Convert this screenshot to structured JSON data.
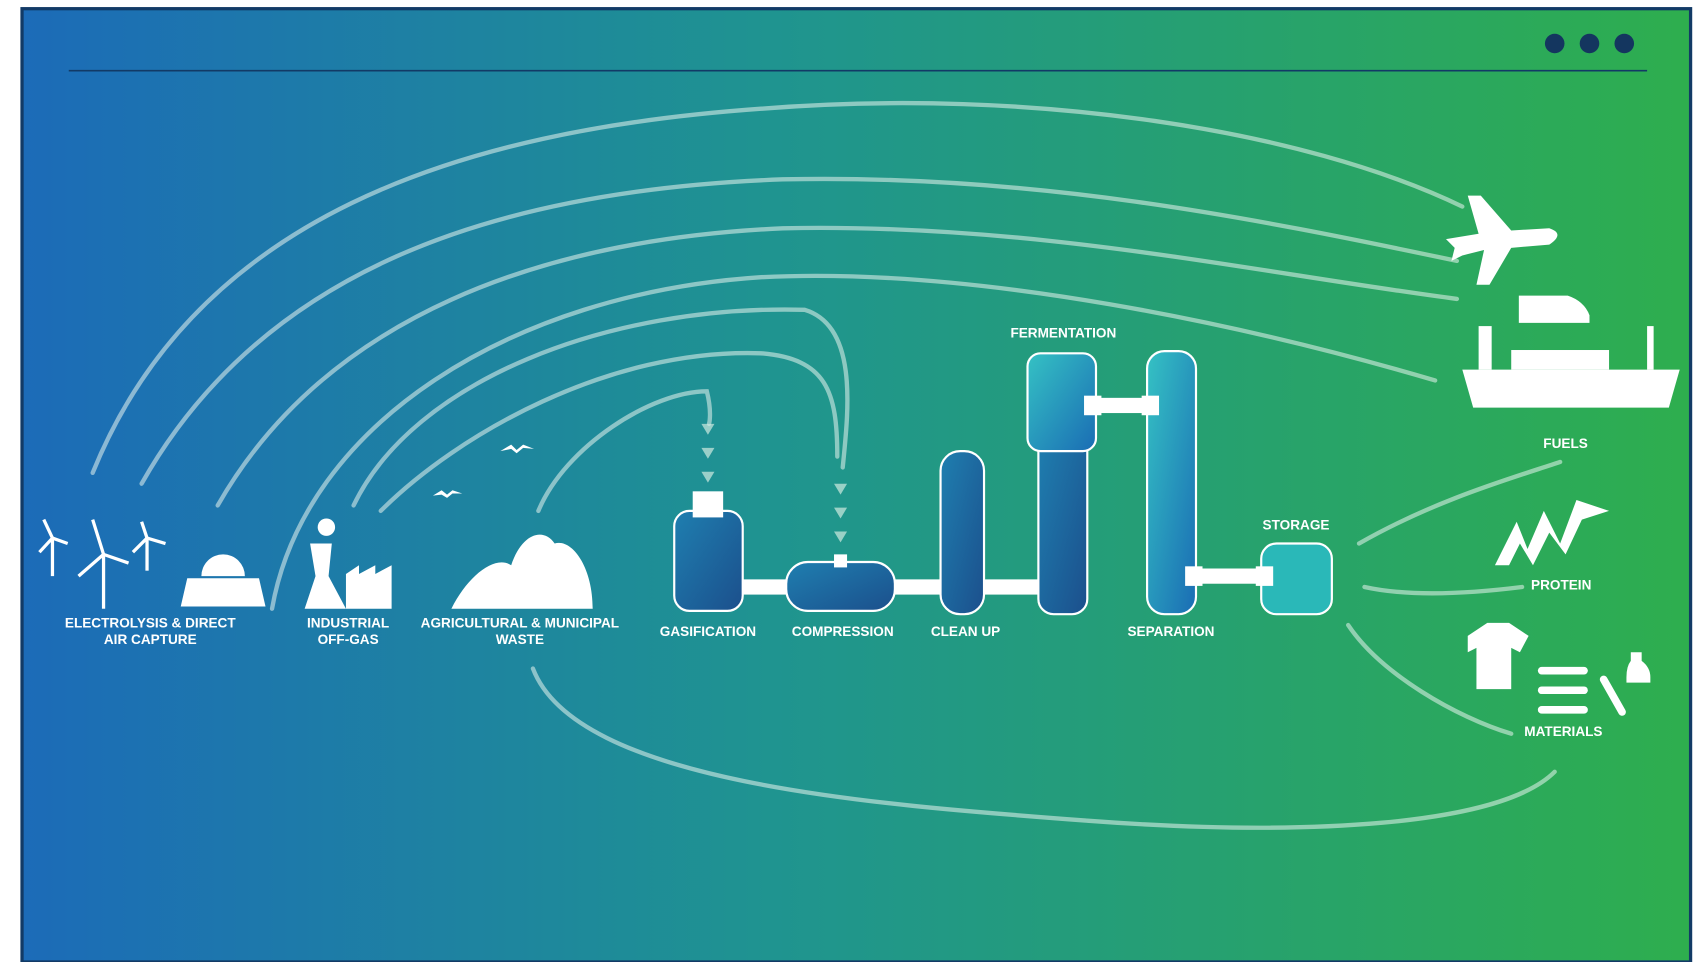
{
  "sources": [
    {
      "lines": [
        "ELECTROLYSIS & DIRECT",
        "AIR CAPTURE"
      ]
    },
    {
      "lines": [
        "INDUSTRIAL",
        "OFF-GAS"
      ]
    },
    {
      "lines": [
        "AGRICULTURAL & MUNICIPAL",
        "WASTE"
      ]
    }
  ],
  "process": [
    "GASIFICATION",
    "COMPRESSION",
    "CLEAN UP",
    "FERMENTATION",
    "SEPARATION",
    "STORAGE"
  ],
  "products": [
    "FUELS",
    "PROTEIN",
    "MATERIALS"
  ]
}
